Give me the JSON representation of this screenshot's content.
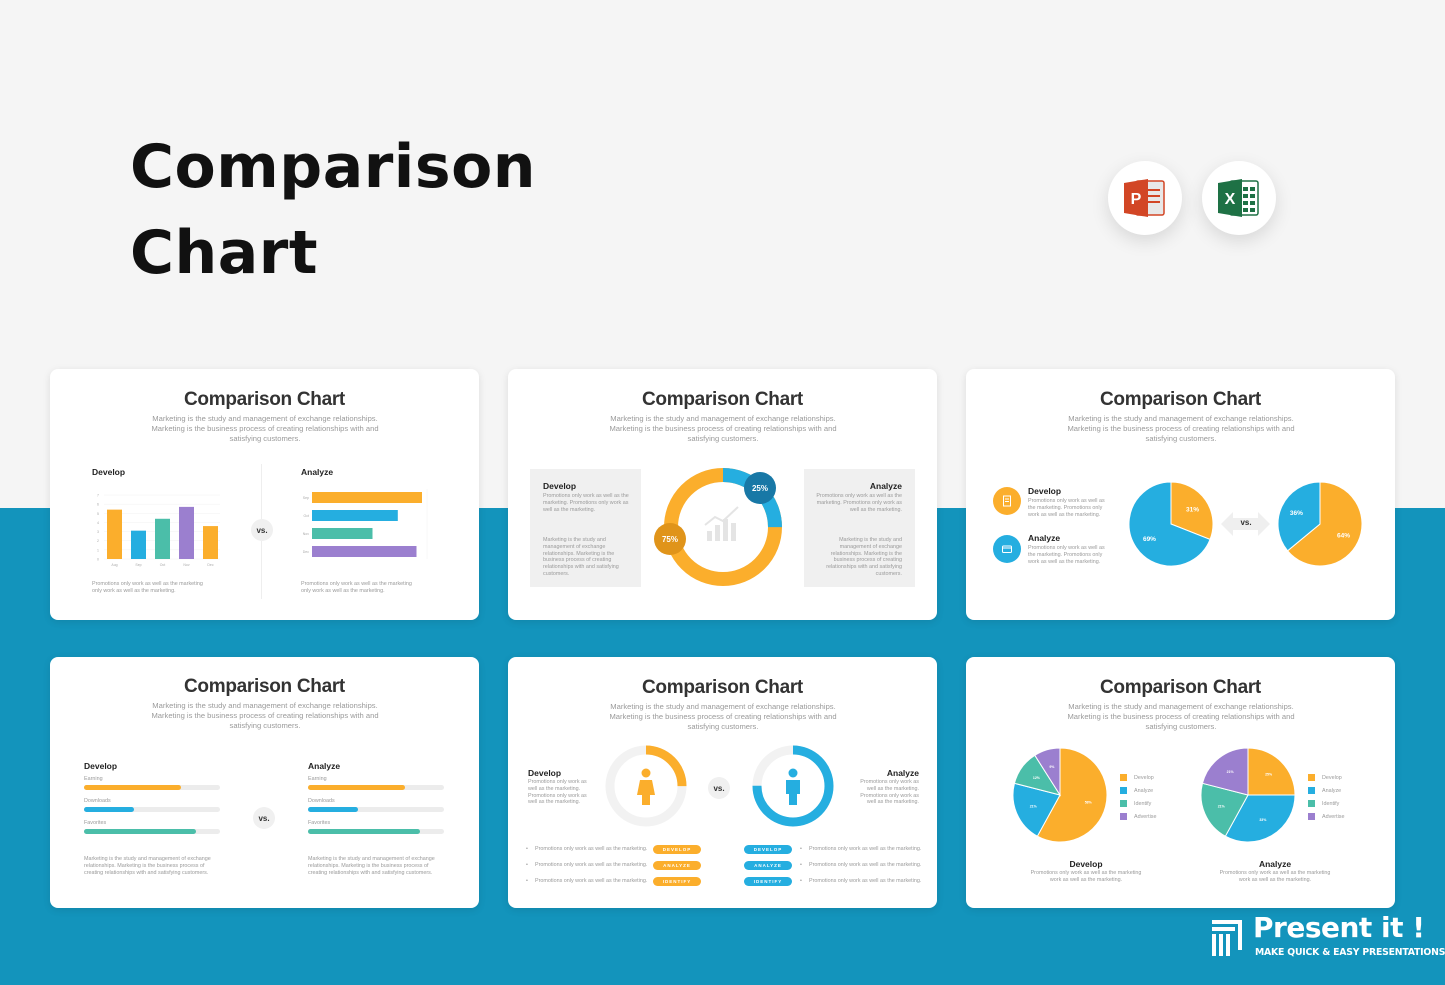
{
  "hero": {
    "title_line1": "Comparison",
    "title_line2": "Chart"
  },
  "apps": [
    {
      "name": "powerpoint-icon",
      "letter": "P",
      "color": "#d24625"
    },
    {
      "name": "excel-icon",
      "letter": "X",
      "color": "#1e7145"
    }
  ],
  "colors": {
    "orange": "#fbae2c",
    "blue": "#25aee0",
    "teal": "#4bbea9",
    "purple": "#9b7fcf",
    "band": "#1394bc"
  },
  "card_common": {
    "title": "Comparison Chart",
    "subtitle": "Marketing is the study and management of exchange relationships. Marketing is the business process of creating relationships with and satisfying customers.",
    "vs": "vs."
  },
  "card1": {
    "develop": "Develop",
    "analyze": "Analyze",
    "note": "Promotions only work as well as the marketing only work as well as the marketing.",
    "bar_categories": [
      "Aug",
      "Sep",
      "Oct",
      "Nov",
      "Dec"
    ],
    "bar_values": [
      5.4,
      3.1,
      4.4,
      5.7,
      3.6
    ],
    "hbar_categories": [
      "Sep",
      "Oct",
      "Nov",
      "Dec"
    ],
    "hbar_values": [
      1.0,
      0.78,
      0.55,
      0.95
    ]
  },
  "card2": {
    "develop": "Develop",
    "analyze": "Analyze",
    "text1": "Promotions only work as well as the marketing. Promotions only work as well as the marketing.",
    "text2": "Marketing is the study and management of exchange relationships. Marketing is the business process of creating relationships with and satisfying customers.",
    "big_pct": "75%",
    "small_pct": "25%",
    "big_value": 75,
    "small_value": 25
  },
  "card3": {
    "develop": "Develop",
    "analyze": "Analyze",
    "text": "Promotions only work as well as the marketing. Promotions only work as well as the marketing.",
    "pie1": {
      "orange": 31,
      "blue": 69,
      "orange_label": "31%",
      "blue_label": "69%"
    },
    "pie2": {
      "blue": 36,
      "orange": 64,
      "blue_label": "36%",
      "orange_label": "64%"
    }
  },
  "card4": {
    "develop": "Develop",
    "analyze": "Analyze",
    "rows": [
      {
        "label": "Earning",
        "value": 0.71,
        "color": "#fbae2c"
      },
      {
        "label": "Downloads",
        "value": 0.37,
        "color": "#25aee0"
      },
      {
        "label": "Favorites",
        "value": 0.82,
        "color": "#4bbea9"
      }
    ],
    "note": "Marketing is the study and management of exchange relationships. Marketing is the business process of creating relationships with and satisfying customers."
  },
  "card5": {
    "develop": "Develop",
    "analyze": "Analyze",
    "text": "Promotions only work as well as the marketing. Promotions only work as well as the marketing.",
    "bullet": "Promotions only work as well as the marketing.",
    "tags": [
      "DEVELOP",
      "ANALYZE",
      "IDENTIFY"
    ],
    "left_value": 0.25,
    "right_value": 0.75
  },
  "card6": {
    "develop": "Develop",
    "analyze": "Analyze",
    "caption": "Promotions only work as well as the marketing work as well as the marketing.",
    "legend": [
      "Develop",
      "Analyze",
      "Identify",
      "Advertise"
    ],
    "pie1": [
      58,
      21,
      12,
      9
    ],
    "pie2": [
      25,
      33,
      21,
      21
    ]
  },
  "brand": {
    "name": "Present it !",
    "tagline": "MAKE QUICK & EASY PRESENTATIONS"
  }
}
